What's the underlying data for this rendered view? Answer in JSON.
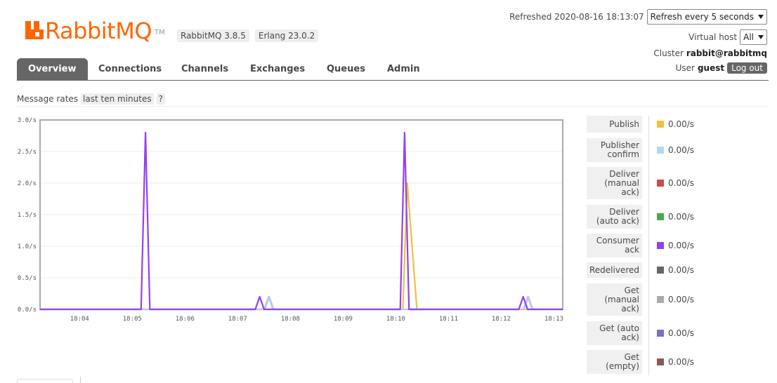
{
  "header": {
    "logo_text": "RabbitMQ",
    "logo_tm": "TM",
    "version_rabbitmq": "RabbitMQ 3.8.5",
    "version_erlang": "Erlang 23.0.2",
    "refreshed_text": "Refreshed 2020-08-16 18:13:07",
    "refresh_select": "Refresh every 5 seconds",
    "vhost_label": "Virtual host",
    "vhost_select": "All",
    "cluster_label": "Cluster",
    "cluster_name": "rabbit@rabbitmq",
    "user_label": "User",
    "user_name": "guest",
    "logout_label": "Log out"
  },
  "nav": {
    "tabs": [
      {
        "label": "Overview",
        "active": true
      },
      {
        "label": "Connections",
        "active": false
      },
      {
        "label": "Channels",
        "active": false
      },
      {
        "label": "Exchanges",
        "active": false
      },
      {
        "label": "Queues",
        "active": false
      },
      {
        "label": "Admin",
        "active": false
      }
    ]
  },
  "rates": {
    "label": "Message rates",
    "range": "last ten minutes",
    "help": "?"
  },
  "chart_data": {
    "type": "line",
    "title": "",
    "xlabel": "",
    "ylabel": "",
    "ylim": [
      0,
      3.0
    ],
    "y_ticks": [
      "0.0/s",
      "0.5/s",
      "1.0/s",
      "1.5/s",
      "2.0/s",
      "2.5/s",
      "3.0/s"
    ],
    "x_ticks": [
      "18:04",
      "18:05",
      "18:06",
      "18:07",
      "18:08",
      "18:09",
      "18:10",
      "18:11",
      "18:12",
      "18:13"
    ],
    "xlim": [
      "18:03:15",
      "18:13:10"
    ],
    "series": [
      {
        "name": "Publish",
        "color": "#edc240",
        "points": [
          [
            "18:03:15",
            0
          ],
          [
            "18:10:08",
            0
          ],
          [
            "18:10:13",
            2.0
          ],
          [
            "18:10:24",
            0
          ],
          [
            "18:13:10",
            0
          ]
        ]
      },
      {
        "name": "Publisher confirm",
        "color": "#afd8f8",
        "points": [
          [
            "18:03:15",
            0
          ],
          [
            "18:07:30",
            0
          ],
          [
            "18:07:35",
            0.2
          ],
          [
            "18:07:40",
            0
          ],
          [
            "18:12:25",
            0
          ],
          [
            "18:12:30",
            0.2
          ],
          [
            "18:12:35",
            0
          ],
          [
            "18:13:10",
            0
          ]
        ]
      },
      {
        "name": "Get (manual ack)",
        "color": "#c8c8d8",
        "points": [
          [
            "18:03:15",
            0
          ],
          [
            "18:07:31",
            0
          ],
          [
            "18:07:36",
            0.2
          ],
          [
            "18:07:41",
            0
          ],
          [
            "18:12:26",
            0
          ],
          [
            "18:12:31",
            0.2
          ],
          [
            "18:12:36",
            0
          ],
          [
            "18:13:10",
            0
          ]
        ]
      },
      {
        "name": "Consumer ack",
        "color": "#9440ed",
        "points": [
          [
            "18:03:15",
            0
          ],
          [
            "18:05:10",
            0
          ],
          [
            "18:05:15",
            2.8
          ],
          [
            "18:05:20",
            0
          ],
          [
            "18:07:20",
            0
          ],
          [
            "18:07:25",
            0.2
          ],
          [
            "18:07:30",
            0
          ],
          [
            "18:10:05",
            0
          ],
          [
            "18:10:10",
            2.8
          ],
          [
            "18:10:15",
            0
          ],
          [
            "18:12:20",
            0
          ],
          [
            "18:12:25",
            0.2
          ],
          [
            "18:12:30",
            0
          ],
          [
            "18:13:10",
            0
          ]
        ]
      }
    ]
  },
  "legend": [
    {
      "label": "Publish",
      "color": "#edc240",
      "value": "0.00/s"
    },
    {
      "label": "Publisher confirm",
      "color": "#afd8f8",
      "value": "0.00/s"
    },
    {
      "label": "Deliver (manual ack)",
      "color": "#cb4b4b",
      "value": "0.00/s"
    },
    {
      "label": "Deliver (auto ack)",
      "color": "#4da74d",
      "value": "0.00/s"
    },
    {
      "label": "Consumer ack",
      "color": "#9440ed",
      "value": "0.00/s"
    },
    {
      "label": "Redelivered",
      "color": "#666666",
      "value": "0.00/s"
    },
    {
      "label": "Get (manual ack)",
      "color": "#aaaaaa",
      "value": "0.00/s"
    },
    {
      "label": "Get (auto ack)",
      "color": "#7a70c0",
      "value": "0.00/s"
    },
    {
      "label": "Get (empty)",
      "color": "#8a5a5a",
      "value": "0.00/s"
    }
  ]
}
